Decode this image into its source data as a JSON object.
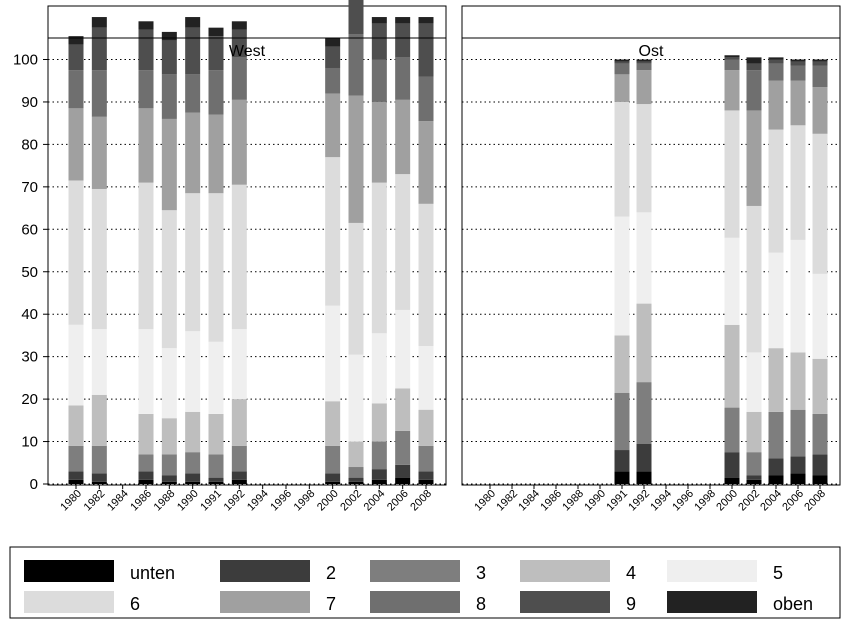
{
  "chart_data": {
    "type": "bar",
    "stacked": true,
    "y_ticks": [
      0,
      10,
      20,
      30,
      40,
      50,
      60,
      70,
      80,
      90,
      100
    ],
    "ylim": [
      0,
      100
    ],
    "grid": "horizontal dotted",
    "legend_position": "bottom",
    "categories": [
      "1980",
      "1982",
      "1984",
      "1986",
      "1988",
      "1990",
      "1991",
      "1992",
      "1994",
      "1996",
      "1998",
      "2000",
      "2002",
      "2004",
      "2006",
      "2008"
    ],
    "series_names": [
      "unten",
      "2",
      "3",
      "4",
      "5",
      "6",
      "7",
      "8",
      "9",
      "oben"
    ],
    "series_colors": [
      "#000000",
      "#3c3c3c",
      "#7e7e7e",
      "#bebebe",
      "#efefef",
      "#dcdcdc",
      "#a0a0a0",
      "#6f6f6f",
      "#4e4e4e",
      "#222222"
    ],
    "panels": [
      {
        "title": "West",
        "bars": [
          {
            "year": "1980",
            "values": [
              1,
              2,
              6,
              9.5,
              19,
              34,
              17,
              9,
              6,
              2
            ]
          },
          {
            "year": "1982",
            "values": [
              0.5,
              2,
              6.5,
              12,
              15.5,
              33,
              17,
              11,
              10,
              2.5
            ]
          },
          {
            "year": "1984",
            "values": null
          },
          {
            "year": "1986",
            "values": [
              1,
              2,
              4,
              9.5,
              20,
              34.5,
              17.5,
              9,
              9.5,
              2
            ]
          },
          {
            "year": "1988",
            "values": [
              0.5,
              1.5,
              5,
              8.5,
              16.5,
              32.5,
              21.5,
              10.5,
              8,
              2
            ]
          },
          {
            "year": "1990",
            "values": [
              0.5,
              2,
              5,
              9.5,
              19,
              32.5,
              19,
              9,
              11,
              2.5
            ]
          },
          {
            "year": "1991",
            "values": [
              0.5,
              1,
              5.5,
              9.5,
              17,
              35,
              18.5,
              10.5,
              8,
              2
            ]
          },
          {
            "year": "1992",
            "values": [
              1,
              2,
              6,
              11,
              16.5,
              34,
              20,
              10,
              6.5,
              2
            ]
          },
          {
            "year": "1994",
            "values": null
          },
          {
            "year": "1996",
            "values": null
          },
          {
            "year": "1998",
            "values": null
          },
          {
            "year": "2000",
            "values": [
              0.5,
              2,
              6.5,
              10.5,
              22.5,
              35,
              15,
              6,
              5,
              2
            ]
          },
          {
            "year": "2002",
            "values": [
              0.5,
              1,
              2.5,
              6,
              20.5,
              31,
              30,
              14.5,
              10,
              3.5
            ]
          },
          {
            "year": "2004",
            "values": [
              1,
              2.5,
              6.5,
              9,
              16.5,
              35.5,
              19,
              10,
              8.5,
              1.5
            ]
          },
          {
            "year": "2006",
            "values": [
              1.5,
              3,
              8,
              10,
              18.5,
              32,
              17.5,
              10,
              8,
              1.5
            ]
          },
          {
            "year": "2008",
            "values": [
              1,
              2,
              6,
              8.5,
              15,
              33.5,
              19.5,
              10.5,
              12.5,
              1.5
            ]
          }
        ]
      },
      {
        "title": "Ost",
        "bars": [
          {
            "year": "1980",
            "values": null
          },
          {
            "year": "1982",
            "values": null
          },
          {
            "year": "1984",
            "values": null
          },
          {
            "year": "1986",
            "values": null
          },
          {
            "year": "1988",
            "values": null
          },
          {
            "year": "1990",
            "values": null
          },
          {
            "year": "1991",
            "values": [
              3,
              5,
              13.5,
              13.5,
              28,
              27,
              6.5,
              2.5,
              0.5,
              0.5
            ]
          },
          {
            "year": "1992",
            "values": [
              3,
              6.5,
              14.5,
              18.5,
              21.5,
              25.5,
              8,
              1.5,
              0.5,
              0.5
            ]
          },
          {
            "year": "1994",
            "values": null
          },
          {
            "year": "1996",
            "values": null
          },
          {
            "year": "1998",
            "values": null
          },
          {
            "year": "2000",
            "values": [
              1.5,
              6,
              10.5,
              19.5,
              20.5,
              30,
              9.5,
              2.5,
              0.5,
              0.5
            ]
          },
          {
            "year": "2002",
            "values": [
              1,
              1,
              5.5,
              9.5,
              14,
              34.5,
              22.5,
              9.5,
              1.5,
              1.5
            ]
          },
          {
            "year": "2004",
            "values": [
              2,
              4,
              11,
              15,
              22.5,
              29,
              11.5,
              4,
              1,
              0.5
            ]
          },
          {
            "year": "2006",
            "values": [
              2.5,
              4,
              11,
              13.5,
              26.5,
              27,
              10.5,
              3.5,
              1,
              0.5
            ]
          },
          {
            "year": "2008",
            "values": [
              2,
              5,
              9.5,
              13,
              20,
              33,
              11,
              5,
              1,
              0.5
            ]
          }
        ]
      }
    ],
    "legend": [
      {
        "label": "unten",
        "color": "#000000"
      },
      {
        "label": "2",
        "color": "#3c3c3c"
      },
      {
        "label": "3",
        "color": "#7e7e7e"
      },
      {
        "label": "4",
        "color": "#bebebe"
      },
      {
        "label": "5",
        "color": "#efefef"
      },
      {
        "label": "6",
        "color": "#dcdcdc"
      },
      {
        "label": "7",
        "color": "#a0a0a0"
      },
      {
        "label": "8",
        "color": "#6f6f6f"
      },
      {
        "label": "9",
        "color": "#4e4e4e"
      },
      {
        "label": "oben",
        "color": "#222222"
      }
    ]
  }
}
